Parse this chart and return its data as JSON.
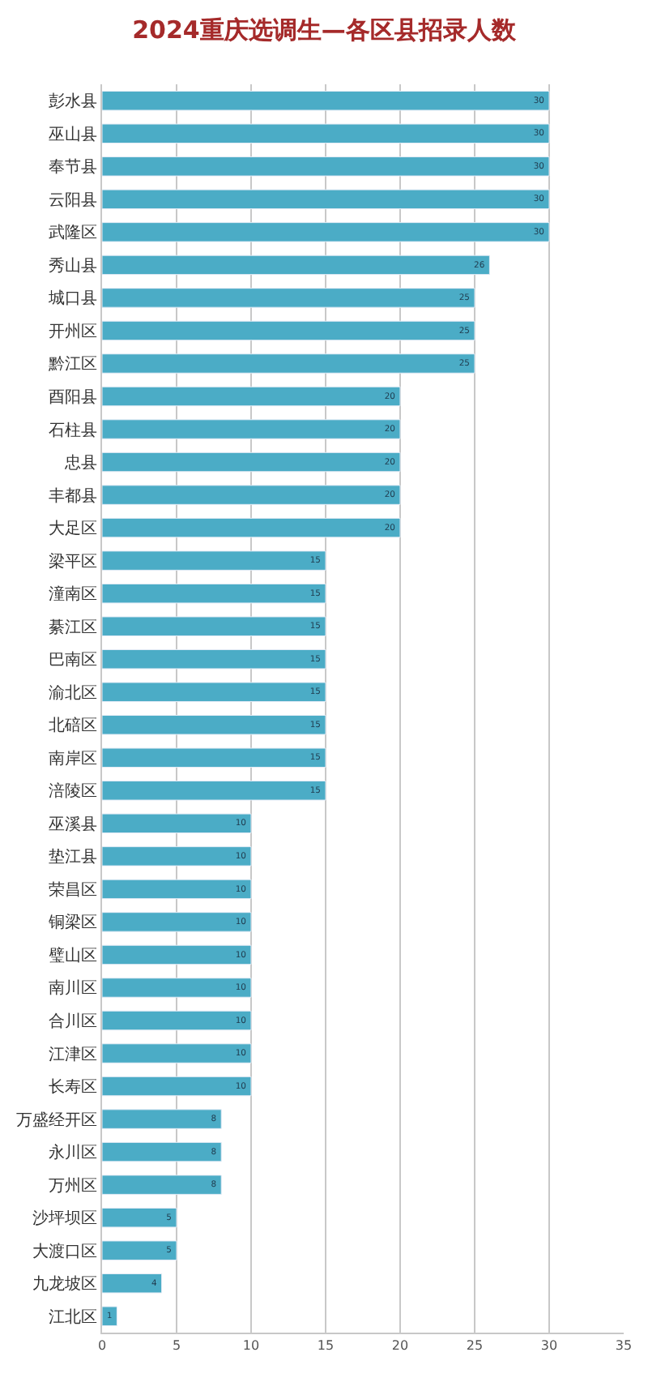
{
  "chart_data": {
    "type": "bar",
    "orientation": "horizontal",
    "title": "2024重庆选调生—各区县招录人数",
    "categories": [
      "彭水县",
      "巫山县",
      "奉节县",
      "云阳县",
      "武隆区",
      "秀山县",
      "城口县",
      "开州区",
      "黔江区",
      "酉阳县",
      "石柱县",
      "忠县",
      "丰都县",
      "大足区",
      "梁平区",
      "潼南区",
      "綦江区",
      "巴南区",
      "渝北区",
      "北碚区",
      "南岸区",
      "涪陵区",
      "巫溪县",
      "垫江县",
      "荣昌区",
      "铜梁区",
      "璧山区",
      "南川区",
      "合川区",
      "江津区",
      "长寿区",
      "万盛经开区",
      "永川区",
      "万州区",
      "沙坪坝区",
      "大渡口区",
      "九龙坡区",
      "江北区"
    ],
    "values": [
      30,
      30,
      30,
      30,
      30,
      26,
      25,
      25,
      25,
      20,
      20,
      20,
      20,
      20,
      15,
      15,
      15,
      15,
      15,
      15,
      15,
      15,
      10,
      10,
      10,
      10,
      10,
      10,
      10,
      10,
      10,
      8,
      8,
      8,
      5,
      5,
      4,
      1
    ],
    "color": "#4bacc6",
    "xlim": [
      0,
      35
    ],
    "xticks": [
      0,
      5,
      10,
      15,
      20,
      25,
      30,
      35
    ],
    "grid": "x",
    "data_labels": true,
    "legend": false
  }
}
